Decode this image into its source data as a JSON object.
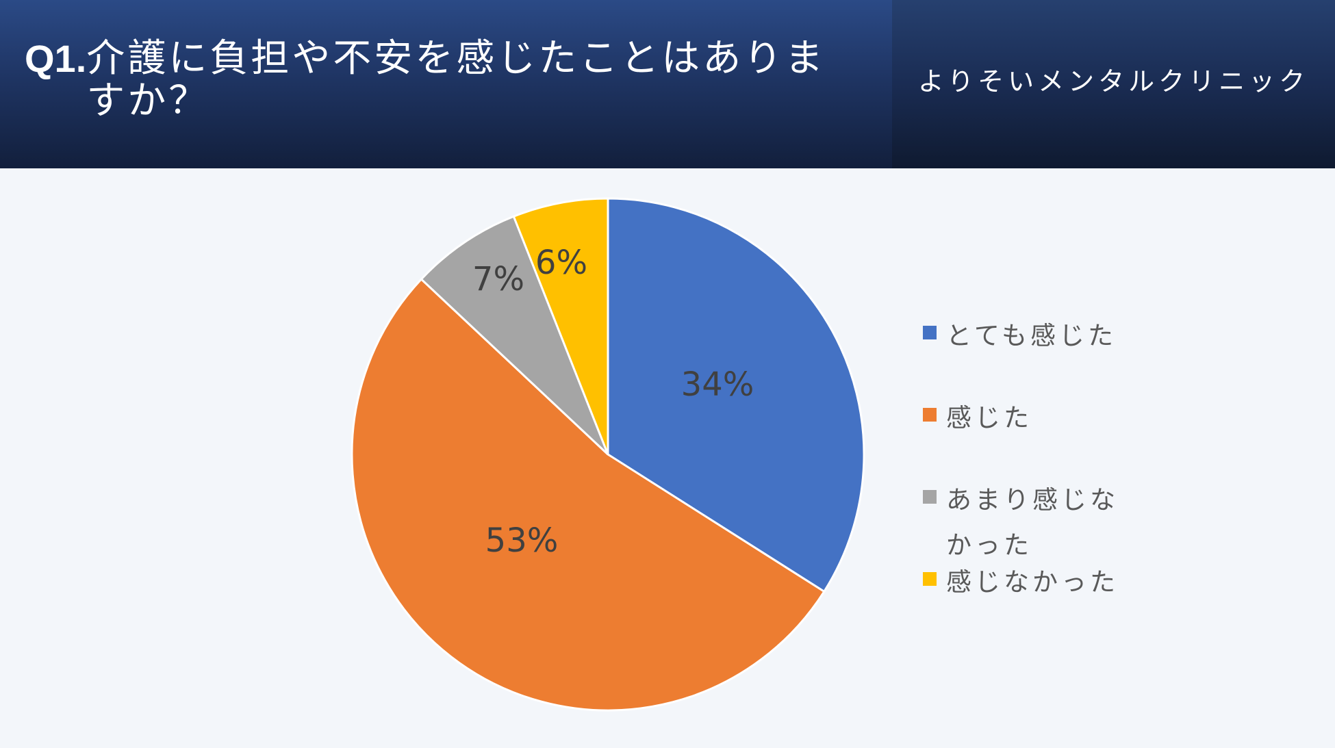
{
  "header": {
    "question_number": "Q1.",
    "question_text": "介護に負担や不安を感じたことはありますか？",
    "clinic_name": "よりそいメンタルクリニック"
  },
  "chart_data": {
    "type": "pie",
    "categories": [
      "とても感じた",
      "感じた",
      "あまり感じなかった",
      "感じなかった"
    ],
    "values": [
      34,
      53,
      7,
      6
    ],
    "labels": [
      "34%",
      "53%",
      "7%",
      "6%"
    ],
    "colors": [
      "#4472c4",
      "#ed7d31",
      "#a5a5a5",
      "#ffc000"
    ],
    "start_angle": "12 o'clock",
    "direction": "clockwise",
    "legend_position": "right"
  }
}
